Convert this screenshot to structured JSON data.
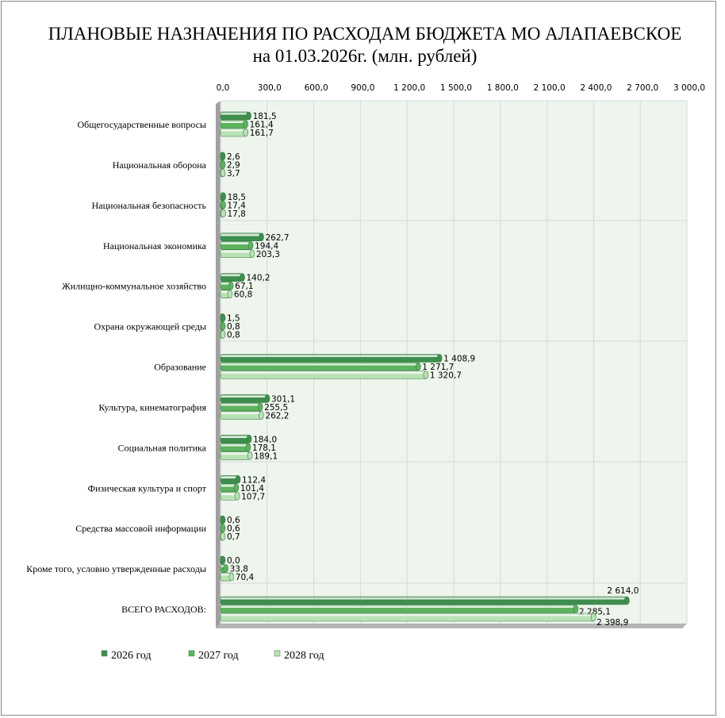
{
  "chart_data": {
    "type": "bar",
    "orientation": "horizontal",
    "title_line1": "ПЛАНОВЫЕ НАЗНАЧЕНИЯ ПО РАСХОДАМ БЮДЖЕТА МО АЛАПАЕВСКОЕ",
    "title_line2": "на 01.03.2026г. (млн. рублей)",
    "xlim": [
      0,
      3000
    ],
    "x_ticks": [
      "0,0",
      "300,0",
      "600,0",
      "900,0",
      "1 200,0",
      "1 500,0",
      "1 800,0",
      "2 100,0",
      "2 400,0",
      "2 700,0",
      "3 000,0"
    ],
    "x_tick_values": [
      0,
      300,
      600,
      900,
      1200,
      1500,
      1800,
      2100,
      2400,
      2700,
      3000
    ],
    "grid": true,
    "legend_position": "bottom-left",
    "categories": [
      "Общегосударственные вопросы",
      "Национальная оборона",
      "Национальная безопасность",
      "Национальная экономика",
      "Жилищно-коммунальное хозяйство",
      "Охрана окружающей среды",
      "Образование",
      "Культура, кинематография",
      "Социальная политика",
      "Физическая культура и спорт",
      "Средства массовой информации",
      "Кроме того, условно утвержденные расходы",
      "ВСЕГО РАСХОДОВ:"
    ],
    "series": [
      {
        "name": "2026 год",
        "color": "#3e8e4e",
        "values": [
          181.5,
          2.6,
          18.5,
          262.7,
          140.2,
          1.5,
          1408.9,
          301.1,
          184.0,
          112.4,
          0.6,
          0.0,
          2614.0
        ],
        "labels": [
          "181,5",
          "2,6",
          "18,5",
          "262,7",
          "140,2",
          "1,5",
          "1 408,9",
          "301,1",
          "184,0",
          "112,4",
          "0,6",
          "0,0",
          "2 614,0"
        ]
      },
      {
        "name": "2027 год",
        "color": "#5db35f",
        "values": [
          161.4,
          2.9,
          17.4,
          194.4,
          67.1,
          0.8,
          1271.7,
          255.5,
          178.1,
          101.4,
          0.6,
          33.8,
          2285.1
        ],
        "labels": [
          "161,4",
          "2,9",
          "17,4",
          "194,4",
          "67,1",
          "0,8",
          "1 271,7",
          "255,5",
          "178,1",
          "101,4",
          "0,6",
          "33,8",
          "2 285,1"
        ]
      },
      {
        "name": "2028 год",
        "color": "#b9e2b5",
        "values": [
          161.7,
          3.7,
          17.8,
          203.3,
          60.8,
          0.8,
          1320.7,
          262.2,
          189.1,
          107.7,
          0.7,
          70.4,
          2398.9
        ],
        "labels": [
          "161,7",
          "3,7",
          "17,8",
          "203,3",
          "60,8",
          "0,8",
          "1 320,7",
          "262,2",
          "189,1",
          "107,7",
          "0,7",
          "70,4",
          "2 398,9"
        ]
      }
    ],
    "colors": {
      "plot_background": "#edf5ec",
      "wall": "#a0a0a0",
      "grid": "#d8d8dc"
    }
  }
}
